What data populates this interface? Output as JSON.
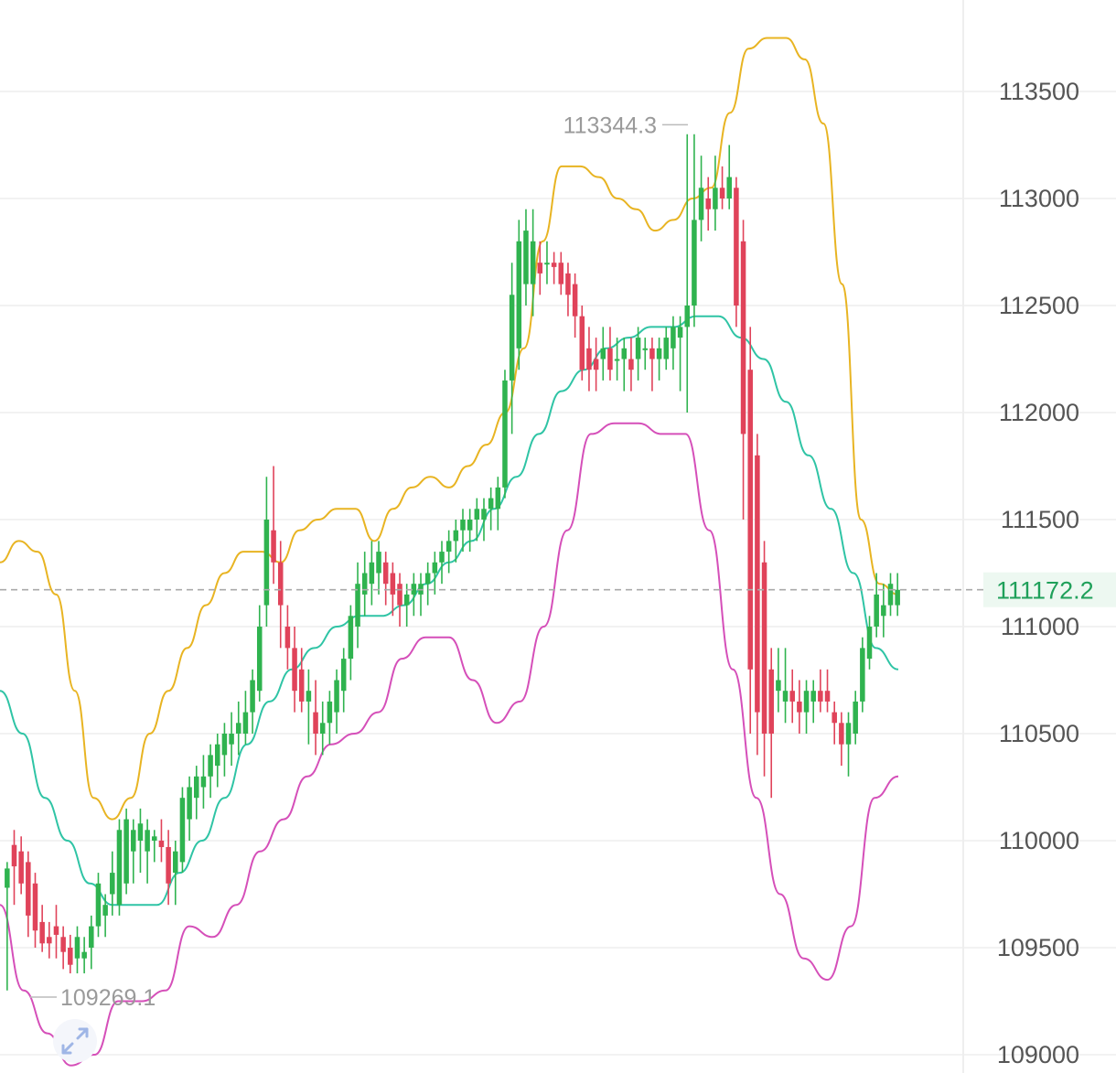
{
  "chart_data": {
    "type": "candlestick",
    "title": "",
    "xlabel": "",
    "ylabel": "",
    "ylim": [
      108940,
      113900
    ],
    "y_ticks": [
      "113500",
      "113000",
      "112500",
      "112000",
      "111500",
      "111000",
      "110500",
      "110000",
      "109500",
      "109000"
    ],
    "grid": true,
    "last_price": "111172.2",
    "annotations": {
      "high_label": "113344.3",
      "low_label": "109269.1"
    },
    "colors": {
      "up": "#2fb34f",
      "down": "#e0435a",
      "upper_band": "#e8b422",
      "middle_band": "#2fc4a5",
      "lower_band": "#d54fb9",
      "last_price_line": "#aaaaaa",
      "grid": "#eeeeee"
    },
    "candles": [
      [
        109780,
        109900,
        109300,
        109870
      ],
      [
        109980,
        110050,
        109700,
        109880
      ],
      [
        109950,
        110020,
        109750,
        109800
      ],
      [
        109900,
        109950,
        109550,
        109650
      ],
      [
        109800,
        109850,
        109500,
        109580
      ],
      [
        109620,
        109700,
        109480,
        109520
      ],
      [
        109550,
        109620,
        109450,
        109520
      ],
      [
        109600,
        109700,
        109450,
        109560
      ],
      [
        109550,
        109600,
        109400,
        109480
      ],
      [
        109500,
        109560,
        109380,
        109420
      ],
      [
        109450,
        109600,
        109380,
        109550
      ],
      [
        109450,
        109550,
        109380,
        109480
      ],
      [
        109500,
        109650,
        109400,
        109600
      ],
      [
        109600,
        109850,
        109550,
        109800
      ],
      [
        109650,
        109750,
        109550,
        109700
      ],
      [
        109750,
        109950,
        109650,
        109850
      ],
      [
        109700,
        110100,
        109650,
        110050
      ],
      [
        109800,
        110150,
        109750,
        110100
      ],
      [
        109950,
        110100,
        109800,
        110050
      ],
      [
        110000,
        110150,
        109850,
        110080
      ],
      [
        109950,
        110100,
        109800,
        110050
      ],
      [
        110000,
        110050,
        109900,
        110020
      ],
      [
        110000,
        110100,
        109900,
        109970
      ],
      [
        109970,
        110050,
        109700,
        109800
      ],
      [
        109850,
        110000,
        109700,
        109950
      ],
      [
        109900,
        110250,
        109850,
        110200
      ],
      [
        110100,
        110300,
        110000,
        110250
      ],
      [
        110200,
        110350,
        110100,
        110300
      ],
      [
        110250,
        110400,
        110150,
        110300
      ],
      [
        110300,
        110450,
        110200,
        110400
      ],
      [
        110350,
        110500,
        110250,
        110450
      ],
      [
        110400,
        110550,
        110300,
        110500
      ],
      [
        110450,
        110600,
        110350,
        110500
      ],
      [
        110500,
        110650,
        110400,
        110550
      ],
      [
        110500,
        110700,
        110450,
        110600
      ],
      [
        110600,
        110800,
        110500,
        110750
      ],
      [
        110700,
        111100,
        110650,
        111000
      ],
      [
        111100,
        111700,
        111000,
        111500
      ],
      [
        111450,
        111750,
        111200,
        111300
      ],
      [
        111300,
        111400,
        110900,
        111100
      ],
      [
        111000,
        111100,
        110800,
        110900
      ],
      [
        110900,
        111000,
        110600,
        110700
      ],
      [
        110800,
        110900,
        110600,
        110650
      ],
      [
        110650,
        110800,
        110450,
        110700
      ],
      [
        110600,
        110750,
        110400,
        110500
      ],
      [
        110500,
        110650,
        110400,
        110550
      ],
      [
        110550,
        110700,
        110450,
        110650
      ],
      [
        110600,
        110800,
        110500,
        110750
      ],
      [
        110700,
        110900,
        110600,
        110850
      ],
      [
        110850,
        111100,
        110750,
        111050
      ],
      [
        111000,
        111300,
        110900,
        111200
      ],
      [
        111150,
        111350,
        111050,
        111250
      ],
      [
        111200,
        111400,
        111100,
        111300
      ],
      [
        111250,
        111400,
        111150,
        111350
      ],
      [
        111300,
        111350,
        111100,
        111200
      ],
      [
        111250,
        111300,
        111050,
        111150
      ],
      [
        111200,
        111250,
        111000,
        111100
      ],
      [
        111100,
        111200,
        111000,
        111150
      ],
      [
        111150,
        111250,
        111050,
        111200
      ],
      [
        111150,
        111250,
        111050,
        111200
      ],
      [
        111200,
        111300,
        111100,
        111250
      ],
      [
        111250,
        111350,
        111150,
        111300
      ],
      [
        111300,
        111400,
        111200,
        111350
      ],
      [
        111350,
        111450,
        111250,
        111400
      ],
      [
        111400,
        111500,
        111300,
        111450
      ],
      [
        111450,
        111550,
        111350,
        111500
      ],
      [
        111450,
        111550,
        111350,
        111500
      ],
      [
        111500,
        111600,
        111400,
        111550
      ],
      [
        111500,
        111600,
        111400,
        111550
      ],
      [
        111550,
        111650,
        111450,
        111600
      ],
      [
        111550,
        111700,
        111450,
        111650
      ],
      [
        111650,
        112200,
        111600,
        112150
      ],
      [
        112150,
        112700,
        111900,
        112550
      ],
      [
        112300,
        112900,
        112200,
        112800
      ],
      [
        112600,
        112950,
        112500,
        112850
      ],
      [
        112600,
        112950,
        112450,
        112800
      ],
      [
        112700,
        112800,
        112550,
        112650
      ],
      [
        112700,
        112800,
        112600,
        112700
      ],
      [
        112700,
        112750,
        112600,
        112680
      ],
      [
        112700,
        112750,
        112550,
        112600
      ],
      [
        112650,
        112700,
        112450,
        112550
      ],
      [
        112600,
        112650,
        112350,
        112450
      ],
      [
        112450,
        112500,
        112150,
        112200
      ],
      [
        112300,
        112400,
        112100,
        112200
      ],
      [
        112250,
        112350,
        112100,
        112200
      ],
      [
        112250,
        112400,
        112150,
        112300
      ],
      [
        112300,
        112400,
        112150,
        112200
      ],
      [
        112250,
        112350,
        112150,
        112250
      ],
      [
        112250,
        112350,
        112100,
        112300
      ],
      [
        112250,
        112350,
        112100,
        112200
      ],
      [
        112250,
        112400,
        112150,
        112350
      ],
      [
        112300,
        112350,
        112200,
        112300
      ],
      [
        112300,
        112350,
        112100,
        112250
      ],
      [
        112250,
        112350,
        112150,
        112300
      ],
      [
        112250,
        112400,
        112200,
        112350
      ],
      [
        112300,
        112450,
        112200,
        112400
      ],
      [
        112350,
        112450,
        112100,
        112400
      ],
      [
        112400,
        113300,
        112000,
        112500
      ],
      [
        112500,
        113300,
        112400,
        112900
      ],
      [
        112900,
        113200,
        112800,
        113050
      ],
      [
        113000,
        113100,
        112850,
        112950
      ],
      [
        112950,
        113200,
        112850,
        113050
      ],
      [
        113050,
        113150,
        112950,
        113000
      ],
      [
        113000,
        113250,
        112950,
        113100
      ],
      [
        113050,
        113100,
        112400,
        112500
      ],
      [
        112800,
        112900,
        111500,
        111900
      ],
      [
        112200,
        112400,
        110500,
        110800
      ],
      [
        111800,
        111900,
        110400,
        110600
      ],
      [
        111300,
        111400,
        110300,
        110500
      ],
      [
        110800,
        110900,
        110200,
        110500
      ],
      [
        110700,
        110900,
        110600,
        110750
      ],
      [
        110650,
        110900,
        110550,
        110700
      ],
      [
        110700,
        110800,
        110550,
        110650
      ],
      [
        110650,
        110750,
        110500,
        110600
      ],
      [
        110600,
        110750,
        110500,
        110700
      ],
      [
        110650,
        110750,
        110550,
        110700
      ],
      [
        110700,
        110800,
        110600,
        110650
      ],
      [
        110700,
        110800,
        110600,
        110650
      ],
      [
        110600,
        110650,
        110450,
        110550
      ],
      [
        110550,
        110600,
        110350,
        110450
      ],
      [
        110450,
        110600,
        110300,
        110550
      ],
      [
        110500,
        110700,
        110450,
        110650
      ],
      [
        110650,
        110950,
        110600,
        110900
      ],
      [
        110850,
        111050,
        110800,
        111000
      ],
      [
        111000,
        111250,
        110950,
        111150
      ],
      [
        111050,
        111200,
        110950,
        111100
      ],
      [
        111100,
        111250,
        111050,
        111200
      ],
      [
        111100,
        111250,
        111050,
        111172
      ]
    ],
    "upper_band": [
      111300,
      111400,
      111350,
      111150,
      110700,
      110200,
      110100,
      110200,
      110500,
      110700,
      110900,
      111100,
      111250,
      111350,
      111350,
      111300,
      111450,
      111500,
      111550,
      111550,
      111400,
      111550,
      111650,
      111700,
      111650,
      111750,
      111850,
      112000,
      112300,
      112800,
      113150,
      113150,
      113100,
      113000,
      112950,
      112850,
      112900,
      113000,
      113050,
      113400,
      113700,
      113750,
      113750,
      113650,
      113350,
      112600,
      111500,
      111200,
      111150
    ],
    "middle_band": [
      110700,
      110500,
      110200,
      110000,
      109800,
      109700,
      109700,
      109700,
      109850,
      110000,
      110200,
      110450,
      110650,
      110800,
      110900,
      111000,
      111050,
      111050,
      111100,
      111200,
      111300,
      111400,
      111550,
      111700,
      111900,
      112100,
      112200,
      112300,
      112350,
      112400,
      112400,
      112450,
      112450,
      112350,
      112250,
      112050,
      111800,
      111550,
      111250,
      110900,
      110800
    ],
    "lower_band": [
      109700,
      109300,
      109100,
      108950,
      109000,
      109250,
      109250,
      109300,
      109600,
      109550,
      109700,
      109950,
      110100,
      110300,
      110450,
      110500,
      110600,
      110850,
      110950,
      110950,
      110750,
      110550,
      110650,
      111000,
      111450,
      111900,
      111950,
      111950,
      111900,
      111900,
      111450,
      110800,
      110200,
      109750,
      109450,
      109350,
      109600,
      110200,
      110300
    ]
  }
}
